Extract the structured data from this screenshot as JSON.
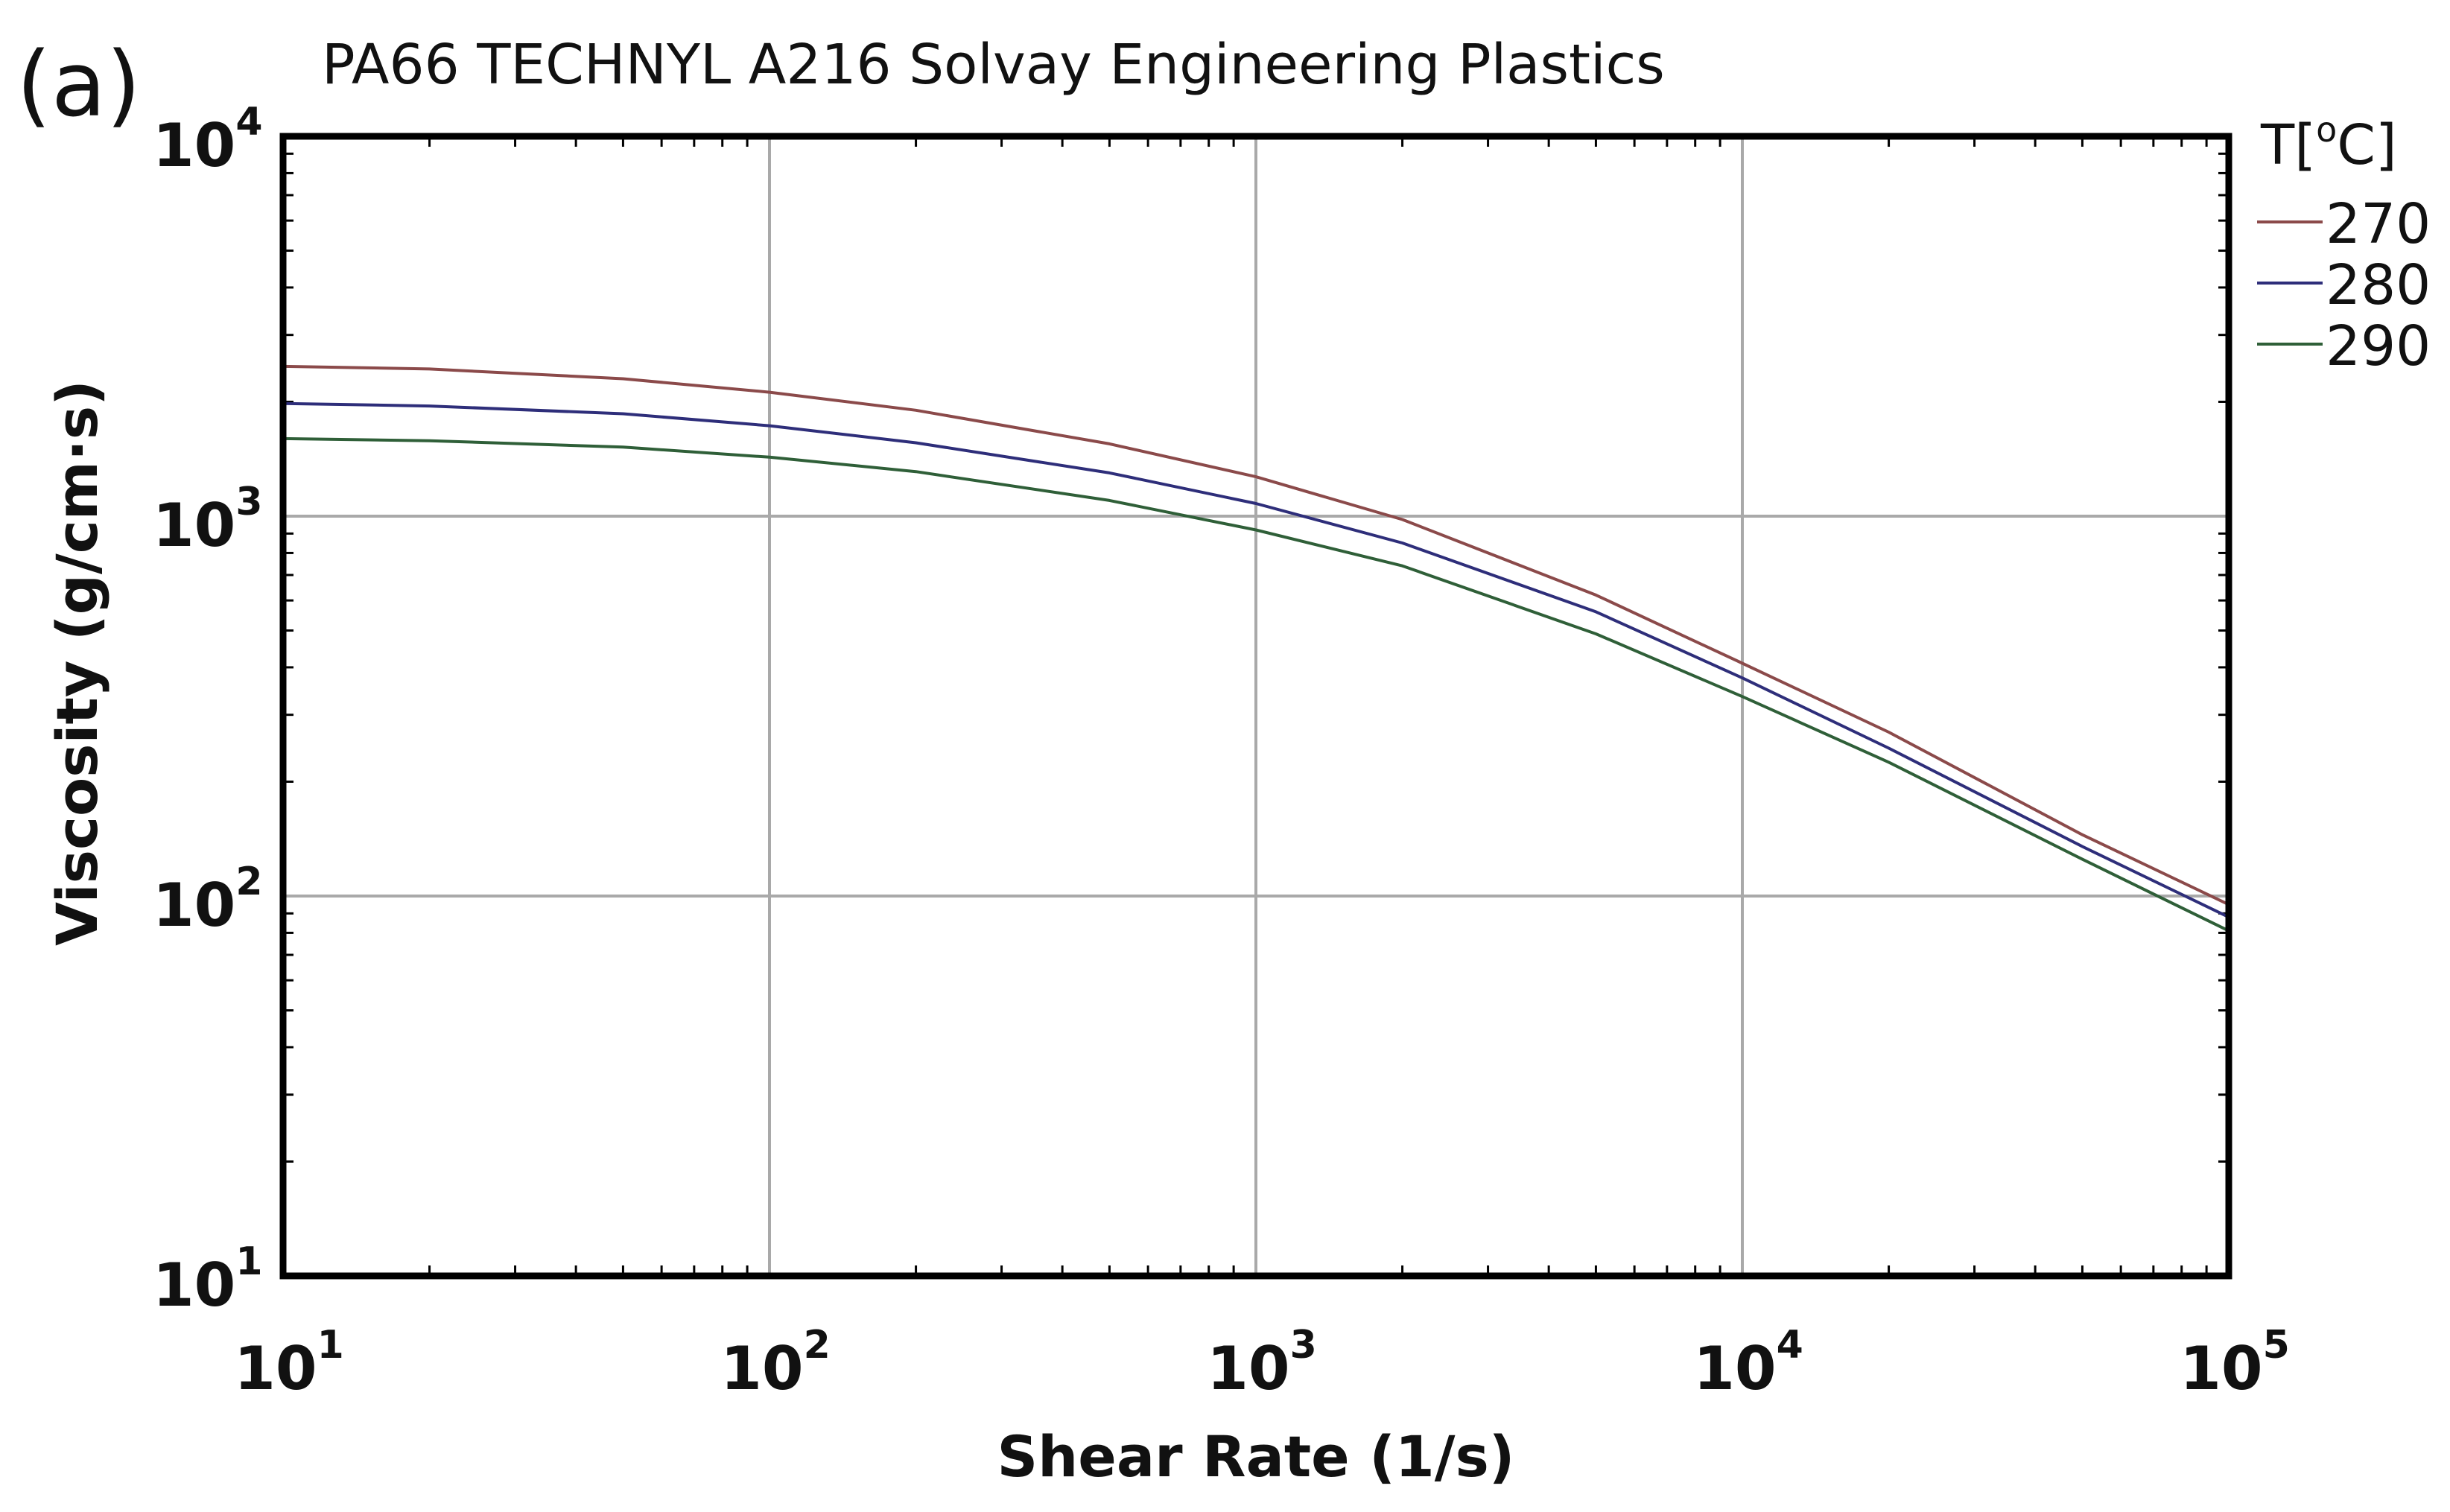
{
  "chart_data": {
    "type": "line",
    "panel_label": "(a)",
    "title": "PA66 TECHNYL A216 Solvay Engineering Plastics",
    "xlabel": "Shear Rate (1/s)",
    "ylabel": "Viscosity (g/cm·s)",
    "xscale": "log",
    "yscale": "log",
    "xlim": [
      10,
      100000
    ],
    "ylim": [
      10,
      10000
    ],
    "grid": true,
    "x_ticks": [
      {
        "base": "10",
        "exp": "1",
        "value": 10
      },
      {
        "base": "10",
        "exp": "2",
        "value": 100
      },
      {
        "base": "10",
        "exp": "3",
        "value": 1000
      },
      {
        "base": "10",
        "exp": "4",
        "value": 10000
      },
      {
        "base": "10",
        "exp": "5",
        "value": 100000
      }
    ],
    "y_ticks": [
      {
        "base": "10",
        "exp": "1",
        "value": 10
      },
      {
        "base": "10",
        "exp": "2",
        "value": 100
      },
      {
        "base": "10",
        "exp": "3",
        "value": 1000
      },
      {
        "base": "10",
        "exp": "4",
        "value": 10000
      }
    ],
    "legend": {
      "title_main": "T[",
      "title_sup": "o",
      "title_end": "C]",
      "position": "right"
    },
    "x": [
      10,
      20,
      50,
      100,
      200,
      500,
      1000,
      2000,
      5000,
      10000,
      20000,
      50000,
      100000
    ],
    "series": [
      {
        "name": "270",
        "color": "#8b4a4a",
        "values": [
          2480,
          2440,
          2300,
          2120,
          1900,
          1550,
          1270,
          980,
          620,
          410,
          270,
          145,
          95
        ]
      },
      {
        "name": "280",
        "color": "#2e2e7a",
        "values": [
          1980,
          1950,
          1860,
          1730,
          1560,
          1300,
          1080,
          850,
          560,
          375,
          245,
          135,
          88
        ]
      },
      {
        "name": "290",
        "color": "#2f5f38",
        "values": [
          1600,
          1580,
          1520,
          1430,
          1310,
          1100,
          920,
          740,
          490,
          335,
          225,
          125,
          81
        ]
      }
    ]
  }
}
